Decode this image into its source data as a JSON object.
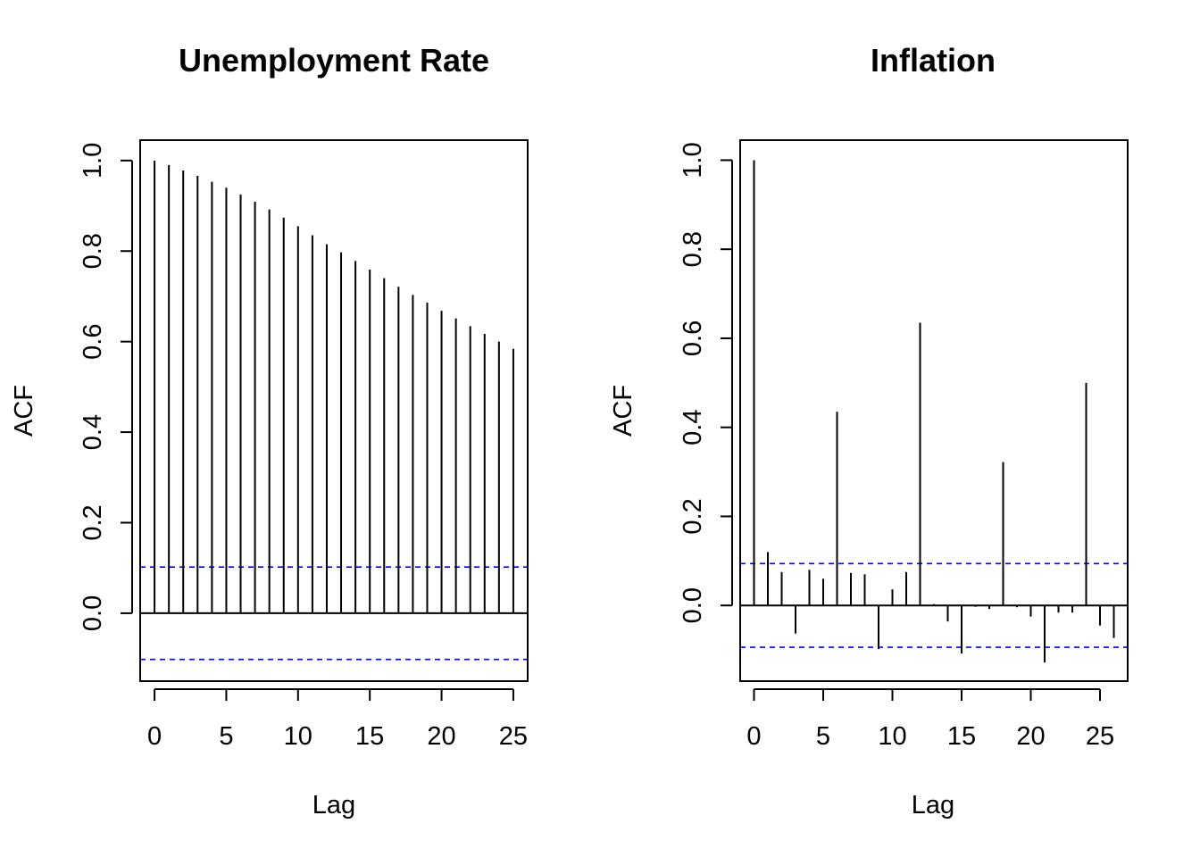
{
  "chart_data": [
    {
      "type": "bar",
      "subtype": "acf-spike",
      "title": "Unemployment Rate",
      "xlabel": "Lag",
      "ylabel": "ACF",
      "xlim": [
        -1,
        26
      ],
      "ylim": [
        -0.15,
        1.045
      ],
      "x_ticks": [
        0,
        5,
        10,
        15,
        20,
        25
      ],
      "y_ticks": [
        "0.0",
        "0.2",
        "0.4",
        "0.6",
        "0.8",
        "1.0"
      ],
      "conf_bound": 0.102,
      "colors": {
        "bars": "#000000",
        "conf": "#0000ff",
        "zero": "#000000"
      },
      "lags": [
        0,
        1,
        2,
        3,
        4,
        5,
        6,
        7,
        8,
        9,
        10,
        11,
        12,
        13,
        14,
        15,
        16,
        17,
        18,
        19,
        20,
        21,
        22,
        23,
        24,
        25
      ],
      "values": [
        1.0,
        0.99,
        0.978,
        0.966,
        0.953,
        0.94,
        0.925,
        0.909,
        0.892,
        0.874,
        0.855,
        0.835,
        0.815,
        0.797,
        0.778,
        0.759,
        0.74,
        0.721,
        0.703,
        0.686,
        0.668,
        0.651,
        0.634,
        0.617,
        0.6,
        0.584
      ]
    },
    {
      "type": "bar",
      "subtype": "acf-spike",
      "title": "Inflation",
      "xlabel": "Lag",
      "ylabel": "ACF",
      "xlim": [
        -1,
        27
      ],
      "ylim": [
        -0.17,
        1.045
      ],
      "x_ticks": [
        0,
        5,
        10,
        15,
        20,
        25
      ],
      "y_ticks": [
        "0.0",
        "0.2",
        "0.4",
        "0.6",
        "0.8",
        "1.0"
      ],
      "conf_bound": 0.094,
      "colors": {
        "bars": "#000000",
        "conf": "#0000ff",
        "zero": "#000000"
      },
      "lags": [
        0,
        1,
        2,
        3,
        4,
        5,
        6,
        7,
        8,
        9,
        10,
        11,
        12,
        13,
        14,
        15,
        16,
        17,
        18,
        19,
        20,
        21,
        22,
        23,
        24,
        25,
        26
      ],
      "values": [
        1.0,
        0.12,
        0.075,
        -0.063,
        0.08,
        0.06,
        0.435,
        0.073,
        0.07,
        -0.098,
        0.036,
        0.075,
        0.635,
        0.003,
        -0.036,
        -0.108,
        -0.003,
        -0.008,
        0.322,
        -0.004,
        -0.025,
        -0.128,
        -0.016,
        -0.016,
        0.5,
        -0.045,
        -0.073
      ]
    }
  ]
}
